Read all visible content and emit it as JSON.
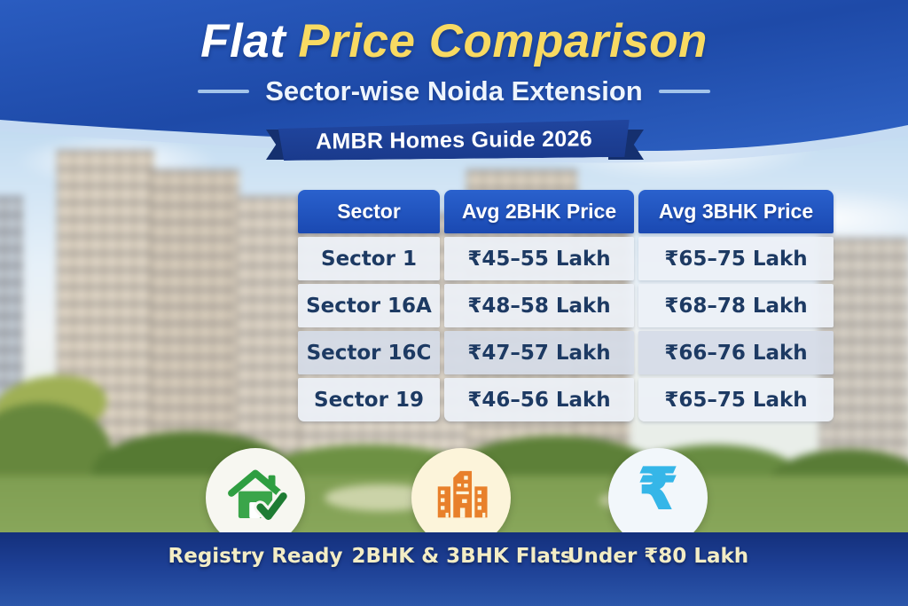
{
  "poster": {
    "title": {
      "part1": "Flat",
      "part2": "Price Comparison"
    },
    "subtitle": "Sector-wise Noida Extension",
    "ribbon_text": "AMBR Homes Guide 2026"
  },
  "chart_data": {
    "type": "table",
    "title": "Flat Price Comparison",
    "subtitle": "Sector-wise Noida Extension",
    "source_banner": "AMBR Homes Guide 2026",
    "columns": [
      "Sector",
      "Avg 2BHK Price",
      "Avg 3BHK Price"
    ],
    "rows": [
      [
        "Sector 1",
        "₹45–55 Lakh",
        "₹65–75 Lakh"
      ],
      [
        "Sector 16A",
        "₹48–58 Lakh",
        "₹68–78 Lakh"
      ],
      [
        "Sector 16C",
        "₹47–57 Lakh",
        "₹66–76 Lakh"
      ],
      [
        "Sector 19",
        "₹46–56 Lakh",
        "₹65–75 Lakh"
      ]
    ]
  },
  "features": [
    {
      "icon": "house-check-icon",
      "label": "Registry Ready"
    },
    {
      "icon": "buildings-icon",
      "label": "2BHK & 3BHK Flats"
    },
    {
      "icon": "rupee-icon",
      "label": "Under ₹80 Lakh",
      "glyph": "₹"
    }
  ],
  "colors": {
    "header_blue": "#2257bd",
    "title_yellow": "#f8da62",
    "ribbon_navy": "#1d3f93",
    "table_header_blue": "#1e53c2",
    "cell_text_navy": "#1d3a63",
    "bottom_bar_blue": "#1b3c8f",
    "label_cream": "#f3edc5",
    "house_green": "#3aa54a",
    "check_green": "#1e7c33",
    "building_orange": "#e8802b",
    "rupee_blue": "#35b6e8"
  }
}
